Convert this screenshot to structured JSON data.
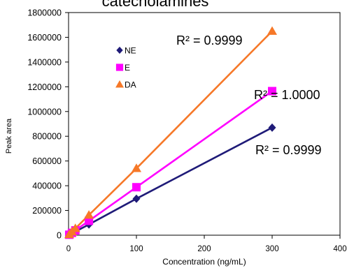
{
  "chart_data": {
    "type": "line",
    "title": "catecholamines",
    "xlabel": "Concentration (ng/mL)",
    "ylabel": "Peak area",
    "xlim": [
      0,
      400
    ],
    "ylim": [
      0,
      1800000
    ],
    "x_ticks": [
      "0",
      "100",
      "200",
      "300",
      "400"
    ],
    "y_ticks": [
      "0",
      "200000",
      "400000",
      "600000",
      "800000",
      "1000000",
      "1200000",
      "1400000",
      "1600000",
      "1800000"
    ],
    "grid": false,
    "legend_position": "upper-left",
    "series": [
      {
        "name": "NE",
        "marker": "diamond",
        "color": "#1F1B78",
        "x": [
          1,
          5,
          10,
          30,
          100,
          300
        ],
        "y": [
          3000,
          14500,
          29000,
          87000,
          295000,
          870000
        ]
      },
      {
        "name": "E",
        "marker": "square",
        "color": "#FF00FF",
        "x": [
          1,
          5,
          10,
          30,
          100,
          300
        ],
        "y": [
          3900,
          19000,
          39000,
          116000,
          388000,
          1165000
        ]
      },
      {
        "name": "DA",
        "marker": "triangle",
        "color": "#F67828",
        "x": [
          1,
          5,
          10,
          30,
          100,
          300
        ],
        "y": [
          5500,
          27500,
          55000,
          163000,
          540000,
          1650000
        ]
      }
    ],
    "annotations": [
      {
        "series": "DA",
        "text": "R² = 0.9999"
      },
      {
        "series": "E",
        "text": "R² = 1.0000"
      },
      {
        "series": "NE",
        "text": "R² = 0.9999"
      }
    ]
  }
}
